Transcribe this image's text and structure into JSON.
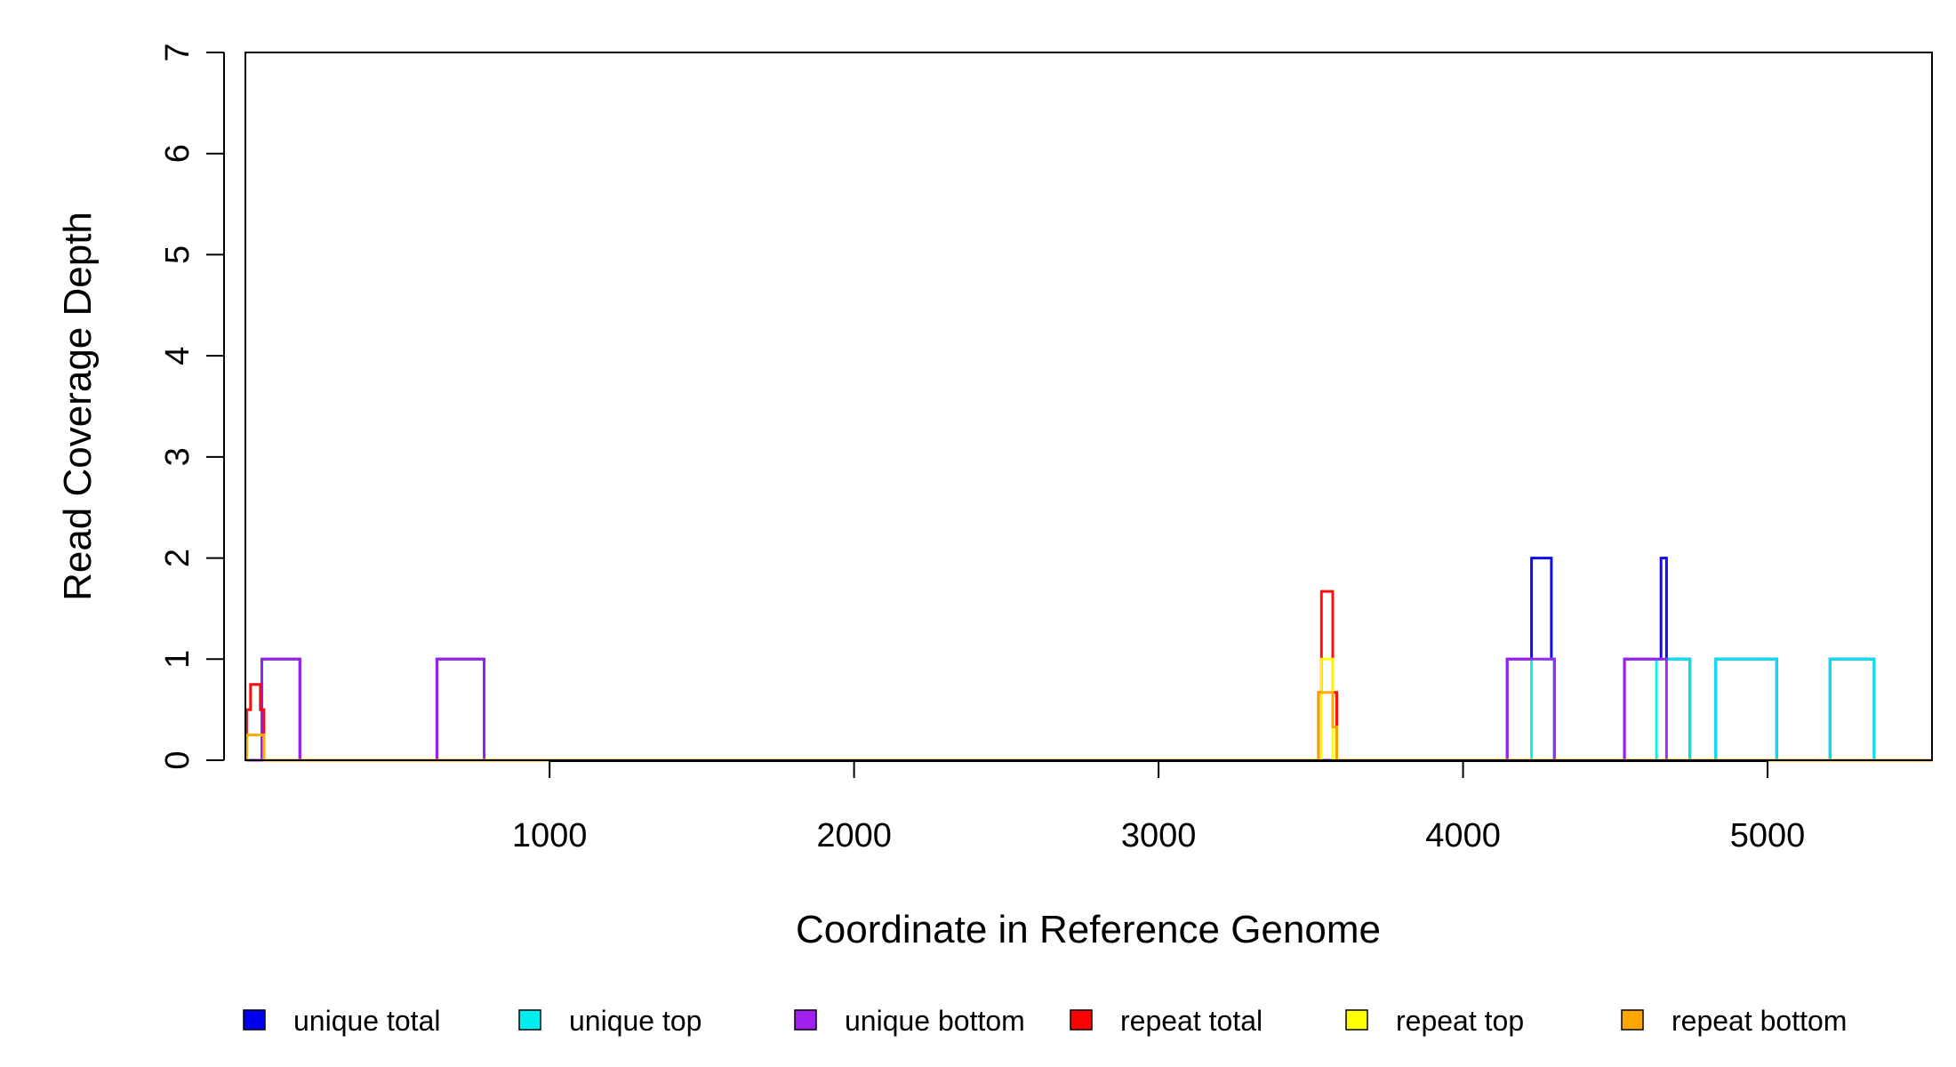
{
  "chart_data": {
    "type": "line",
    "style": "step",
    "title": "",
    "xlabel": "Coordinate in Reference Genome",
    "ylabel": "Read Coverage Depth",
    "xlim": [
      1,
      5540
    ],
    "ylim": [
      0,
      7
    ],
    "xticks": [
      1000,
      2000,
      3000,
      4000,
      5000
    ],
    "xtick_labels": [
      "1000",
      "2000",
      "3000",
      "4000",
      "5000"
    ],
    "yticks": [
      0,
      1,
      2,
      3,
      4,
      5,
      6,
      7
    ],
    "ytick_labels": [
      "0",
      "1",
      "2",
      "3",
      "4",
      "5",
      "6",
      "7"
    ],
    "legend_position": "bottom",
    "series": [
      {
        "name": "unique total",
        "color": "#0000ee",
        "points": [
          [
            1,
            0
          ],
          [
            55,
            0
          ],
          [
            55,
            1
          ],
          [
            180,
            1
          ],
          [
            180,
            0
          ],
          [
            630,
            0
          ],
          [
            630,
            1
          ],
          [
            785,
            1
          ],
          [
            785,
            0
          ],
          [
            4145,
            0
          ],
          [
            4145,
            1
          ],
          [
            4225,
            1
          ],
          [
            4225,
            2
          ],
          [
            4290,
            2
          ],
          [
            4290,
            1
          ],
          [
            4300,
            1
          ],
          [
            4300,
            0
          ],
          [
            4530,
            0
          ],
          [
            4530,
            1
          ],
          [
            4650,
            1
          ],
          [
            4650,
            2
          ],
          [
            4668,
            2
          ],
          [
            4668,
            1
          ],
          [
            4745,
            1
          ],
          [
            4745,
            0
          ],
          [
            4830,
            0
          ],
          [
            4830,
            1
          ],
          [
            5030,
            1
          ],
          [
            5030,
            0
          ],
          [
            5205,
            0
          ],
          [
            5205,
            1
          ],
          [
            5350,
            1
          ],
          [
            5350,
            0
          ],
          [
            5540,
            0
          ]
        ]
      },
      {
        "name": "unique top",
        "color": "#00eeee",
        "points": [
          [
            1,
            0
          ],
          [
            4225,
            0
          ],
          [
            4225,
            1
          ],
          [
            4300,
            1
          ],
          [
            4300,
            0
          ],
          [
            4635,
            0
          ],
          [
            4635,
            1
          ],
          [
            4745,
            1
          ],
          [
            4745,
            0
          ],
          [
            4830,
            0
          ],
          [
            4830,
            1
          ],
          [
            5030,
            1
          ],
          [
            5030,
            0
          ],
          [
            5205,
            0
          ],
          [
            5205,
            1
          ],
          [
            5350,
            1
          ],
          [
            5350,
            0
          ],
          [
            5540,
            0
          ]
        ]
      },
      {
        "name": "unique bottom",
        "color": "#a020f0",
        "points": [
          [
            1,
            0
          ],
          [
            55,
            0
          ],
          [
            55,
            1
          ],
          [
            180,
            1
          ],
          [
            180,
            0
          ],
          [
            630,
            0
          ],
          [
            630,
            1
          ],
          [
            785,
            1
          ],
          [
            785,
            0
          ],
          [
            4145,
            0
          ],
          [
            4145,
            1
          ],
          [
            4300,
            1
          ],
          [
            4300,
            0
          ],
          [
            4530,
            0
          ],
          [
            4530,
            1
          ],
          [
            4668,
            1
          ],
          [
            4668,
            0
          ],
          [
            5540,
            0
          ]
        ]
      },
      {
        "name": "repeat total",
        "color": "#ff0000",
        "points": [
          [
            1,
            0
          ],
          [
            5,
            0
          ],
          [
            5,
            0.5
          ],
          [
            18,
            0.5
          ],
          [
            18,
            0.75
          ],
          [
            50,
            0.75
          ],
          [
            50,
            0.5
          ],
          [
            62,
            0.5
          ],
          [
            62,
            0
          ],
          [
            3525,
            0
          ],
          [
            3525,
            0.67
          ],
          [
            3535,
            0.67
          ],
          [
            3535,
            1.67
          ],
          [
            3572,
            1.67
          ],
          [
            3572,
            0.67
          ],
          [
            3585,
            0.67
          ],
          [
            3585,
            0
          ],
          [
            5540,
            0
          ]
        ]
      },
      {
        "name": "repeat top",
        "color": "#ffff00",
        "points": [
          [
            1,
            0
          ],
          [
            5,
            0
          ],
          [
            5,
            0.25
          ],
          [
            62,
            0.25
          ],
          [
            62,
            0
          ],
          [
            3535,
            0
          ],
          [
            3535,
            1
          ],
          [
            3572,
            1
          ],
          [
            3572,
            0
          ],
          [
            5540,
            0
          ]
        ]
      },
      {
        "name": "repeat bottom",
        "color": "#ffa500",
        "points": [
          [
            1,
            0
          ],
          [
            5,
            0
          ],
          [
            5,
            0.25
          ],
          [
            62,
            0.25
          ],
          [
            62,
            0
          ],
          [
            3525,
            0
          ],
          [
            3525,
            0.67
          ],
          [
            3572,
            0.67
          ],
          [
            3572,
            0.33
          ],
          [
            3585,
            0.33
          ],
          [
            3585,
            0
          ],
          [
            5540,
            0
          ]
        ]
      }
    ]
  }
}
